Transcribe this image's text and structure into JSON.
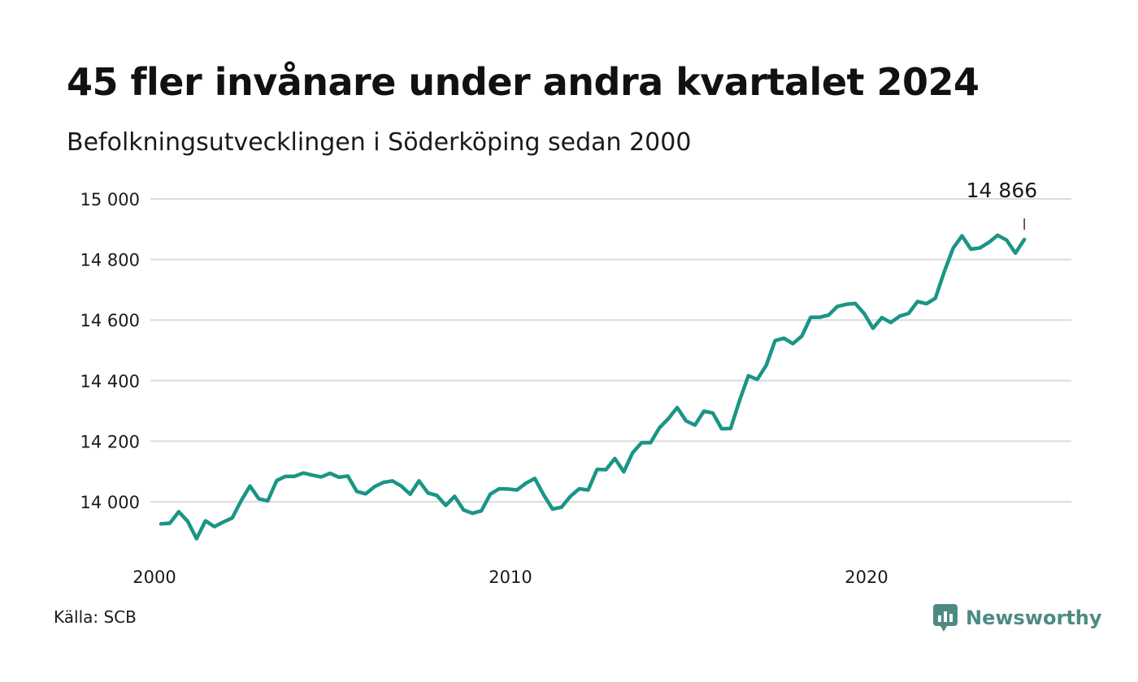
{
  "title": "45 fler invånare under andra kvartalet 2024",
  "subtitle": "Befolkningsutvecklingen i Söderköping sedan 2000",
  "source": "Källa: SCB",
  "brand": {
    "name": "Newsworthy",
    "color": "#4e8a84",
    "icon": "newsworthy-logo-icon"
  },
  "chart_data": {
    "type": "line",
    "color": "#1a9585",
    "grid": true,
    "ylim": [
      13860,
      15000
    ],
    "y_ticks": [
      14000,
      14200,
      14400,
      14600,
      14800,
      15000
    ],
    "y_tick_labels": [
      "14 000",
      "14 200",
      "14 400",
      "14 600",
      "14 800",
      "15 000"
    ],
    "x_ticks": [
      2000,
      2010,
      2020
    ],
    "x_tick_labels": [
      "2000",
      "2010",
      "2020"
    ],
    "last_label": "14 866",
    "x_start": 2000,
    "values": [
      13927,
      13929,
      13967,
      13936,
      13878,
      13937,
      13918,
      13933,
      13946,
      14003,
      14052,
      14010,
      14003,
      14070,
      14084,
      14084,
      14095,
      14088,
      14082,
      14094,
      14081,
      14085,
      14034,
      14026,
      14050,
      14064,
      14069,
      14052,
      14025,
      14069,
      14029,
      14021,
      13988,
      14018,
      13973,
      13962,
      13970,
      14025,
      14043,
      14042,
      14039,
      14061,
      14077,
      14023,
      13976,
      13982,
      14018,
      14043,
      14039,
      14107,
      14106,
      14143,
      14099,
      14162,
      14195,
      14195,
      14244,
      14274,
      14311,
      14267,
      14253,
      14299,
      14293,
      14241,
      14242,
      14334,
      14416,
      14404,
      14450,
      14532,
      14540,
      14522,
      14547,
      14609,
      14609,
      14616,
      14645,
      14652,
      14655,
      14622,
      14573,
      14608,
      14592,
      14613,
      14622,
      14661,
      14654,
      14672,
      14759,
      14837,
      14878,
      14834,
      14838,
      14856,
      14880,
      14864,
      14821,
      14866
    ]
  }
}
